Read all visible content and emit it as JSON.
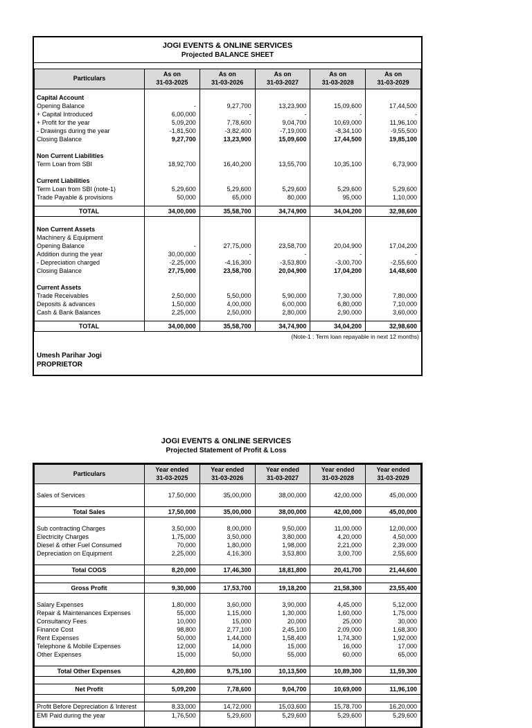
{
  "colors": {
    "header_bg": "#d9d9d9",
    "border": "#000000"
  },
  "balance_sheet": {
    "title_line1": "JOGI EVENTS & ONLINE SERVICES",
    "title_line2": "Projected BALANCE SHEET",
    "particulars_header": "Particulars",
    "columns": [
      {
        "line1": "As on",
        "line2": "31-03-2025"
      },
      {
        "line1": "As on",
        "line2": "31-03-2026"
      },
      {
        "line1": "As on",
        "line2": "31-03-2027"
      },
      {
        "line1": "As on",
        "line2": "31-03-2028"
      },
      {
        "line1": "As on",
        "line2": "31-03-2029"
      }
    ],
    "rows": [
      {
        "type": "spacer",
        "label": "",
        "values": [
          "",
          "",
          "",
          "",
          ""
        ]
      },
      {
        "type": "section",
        "label": "Capital Account",
        "values": [
          "",
          "",
          "",
          "",
          ""
        ]
      },
      {
        "type": "normal",
        "label": "Opening Balance",
        "values": [
          "-",
          "9,27,700",
          "13,23,900",
          "15,09,600",
          "17,44,500"
        ]
      },
      {
        "type": "normal",
        "label": "+ Capital Introduced",
        "values": [
          "6,00,000",
          "-",
          "-",
          "-",
          "-"
        ]
      },
      {
        "type": "normal",
        "label": "+ Profit for the year",
        "values": [
          "5,09,200",
          "7,78,600",
          "9,04,700",
          "10,69,000",
          "11,96,100"
        ]
      },
      {
        "type": "normal",
        "label": "- Drawings during the year",
        "values": [
          "-1,81,500",
          "-3,82,400",
          "-7,19,000",
          "-8,34,100",
          "-9,55,500"
        ]
      },
      {
        "type": "boldvals",
        "label": "Closing Balance",
        "values": [
          "9,27,700",
          "13,23,900",
          "15,09,600",
          "17,44,500",
          "19,85,100"
        ]
      },
      {
        "type": "blank",
        "label": "",
        "values": [
          "",
          "",
          "",
          "",
          ""
        ]
      },
      {
        "type": "section",
        "label": "Non Current Liabilities",
        "values": [
          "",
          "",
          "",
          "",
          ""
        ]
      },
      {
        "type": "normal",
        "label": "Term Loan from SBI",
        "values": [
          "18,92,700",
          "16,40,200",
          "13,55,700",
          "10,35,100",
          "6,73,900"
        ]
      },
      {
        "type": "blank",
        "label": "",
        "values": [
          "",
          "",
          "",
          "",
          ""
        ]
      },
      {
        "type": "section",
        "label": "Current Liabilities",
        "values": [
          "",
          "",
          "",
          "",
          ""
        ]
      },
      {
        "type": "normal",
        "label": "Term Loan from SBI (note-1)",
        "values": [
          "5,29,600",
          "5,29,600",
          "5,29,600",
          "5,29,600",
          "5,29,600"
        ]
      },
      {
        "type": "normal",
        "label": "Trade Payable & provisions",
        "values": [
          "50,000",
          "65,000",
          "80,000",
          "95,000",
          "1,10,000"
        ]
      },
      {
        "type": "spacer",
        "label": "",
        "values": [
          "",
          "",
          "",
          "",
          ""
        ]
      },
      {
        "type": "total",
        "label": "TOTAL",
        "values": [
          "34,00,000",
          "35,58,700",
          "34,74,900",
          "34,04,200",
          "32,98,600"
        ]
      },
      {
        "type": "blank",
        "label": "",
        "values": [
          "",
          "",
          "",
          "",
          ""
        ]
      },
      {
        "type": "section",
        "label": "Non Current Assets",
        "values": [
          "",
          "",
          "",
          "",
          ""
        ]
      },
      {
        "type": "normal",
        "label": "Machinery & Equipment",
        "values": [
          "",
          "",
          "",
          "",
          ""
        ]
      },
      {
        "type": "normal",
        "label": "Opening Balance",
        "values": [
          "-",
          "27,75,000",
          "23,58,700",
          "20,04,900",
          "17,04,200"
        ]
      },
      {
        "type": "normal",
        "label": "Addition during the year",
        "values": [
          "30,00,000",
          "-",
          "-",
          "-",
          "-"
        ]
      },
      {
        "type": "normal",
        "label": "- Depreciation charged",
        "values": [
          "-2,25,000",
          "-4,16,300",
          "-3,53,800",
          "-3,00,700",
          "-2,55,600"
        ]
      },
      {
        "type": "boldvals",
        "label": "Closing Balance",
        "values": [
          "27,75,000",
          "23,58,700",
          "20,04,900",
          "17,04,200",
          "14,48,600"
        ]
      },
      {
        "type": "blank",
        "label": "",
        "values": [
          "",
          "",
          "",
          "",
          ""
        ]
      },
      {
        "type": "section",
        "label": "Current Assets",
        "values": [
          "",
          "",
          "",
          "",
          ""
        ]
      },
      {
        "type": "normal",
        "label": "Trade Receivables",
        "values": [
          "2,50,000",
          "5,50,000",
          "5,90,000",
          "7,30,000",
          "7,80,000"
        ]
      },
      {
        "type": "normal",
        "label": "Deposits & advances",
        "values": [
          "1,50,000",
          "4,00,000",
          "6,00,000",
          "6,80,000",
          "7,10,000"
        ]
      },
      {
        "type": "normal",
        "label": "Cash & Bank Balances",
        "values": [
          "2,25,000",
          "2,50,000",
          "2,80,000",
          "2,90,000",
          "3,60,000"
        ]
      },
      {
        "type": "spacer",
        "label": "",
        "values": [
          "",
          "",
          "",
          "",
          ""
        ]
      },
      {
        "type": "total",
        "label": "TOTAL",
        "values": [
          "34,00,000",
          "35,58,700",
          "34,74,900",
          "34,04,200",
          "32,98,600"
        ]
      }
    ],
    "note": "(Note-1 : Term loan repayable in next 12 months)",
    "signatory_name": "Umesh Parihar Jogi",
    "signatory_designation": "PROPRIETOR"
  },
  "profit_loss": {
    "title_line1": "JOGI EVENTS & ONLINE SERVICES",
    "title_line2": "Projected Statement of Profit & Loss",
    "particulars_header": "Particulars",
    "columns": [
      {
        "line1": "Year ended",
        "line2": "31-03-2025"
      },
      {
        "line1": "Year ended",
        "line2": "31-03-2026"
      },
      {
        "line1": "Year ended",
        "line2": "31-03-2027"
      },
      {
        "line1": "Year ended",
        "line2": "31-03-2028"
      },
      {
        "line1": "Year ended",
        "line2": "31-03-2029"
      }
    ],
    "rows": [
      {
        "type": "spacer",
        "label": "",
        "values": [
          "",
          "",
          "",
          "",
          ""
        ]
      },
      {
        "type": "normal",
        "label": "Sales of Services",
        "values": [
          "17,50,000",
          "35,00,000",
          "38,00,000",
          "42,00,000",
          "45,00,000"
        ]
      },
      {
        "type": "spacer",
        "label": "",
        "values": [
          "",
          "",
          "",
          "",
          ""
        ]
      },
      {
        "type": "total",
        "label": "Total Sales",
        "values": [
          "17,50,000",
          "35,00,000",
          "38,00,000",
          "42,00,000",
          "45,00,000"
        ]
      },
      {
        "type": "spacer",
        "label": "",
        "values": [
          "",
          "",
          "",
          "",
          ""
        ]
      },
      {
        "type": "normal",
        "label": "Sub contracting Charges",
        "values": [
          "3,50,000",
          "8,00,000",
          "9,50,000",
          "11,00,000",
          "12,00,000"
        ]
      },
      {
        "type": "normal",
        "label": "Electricity Charges",
        "values": [
          "1,75,000",
          "3,50,000",
          "3,80,000",
          "4,20,000",
          "4,50,000"
        ]
      },
      {
        "type": "normal",
        "label": "Diesel & other Fuel Consumed",
        "values": [
          "70,000",
          "1,80,000",
          "1,98,000",
          "2,21,000",
          "2,39,000"
        ]
      },
      {
        "type": "normal",
        "label": "Depreciation on Equipment",
        "values": [
          "2,25,000",
          "4,16,300",
          "3,53,800",
          "3,00,700",
          "2,55,600"
        ]
      },
      {
        "type": "spacer",
        "label": "",
        "values": [
          "",
          "",
          "",
          "",
          ""
        ]
      },
      {
        "type": "total",
        "label": "Total COGS",
        "values": [
          "8,20,000",
          "17,46,300",
          "18,81,800",
          "20,41,700",
          "21,44,600"
        ]
      },
      {
        "type": "spacer",
        "label": "",
        "values": [
          "",
          "",
          "",
          "",
          ""
        ]
      },
      {
        "type": "total",
        "label": "Gross Profit",
        "values": [
          "9,30,000",
          "17,53,700",
          "19,18,200",
          "21,58,300",
          "23,55,400"
        ]
      },
      {
        "type": "spacer",
        "label": "",
        "values": [
          "",
          "",
          "",
          "",
          ""
        ]
      },
      {
        "type": "normal",
        "label": "Salary Expenses",
        "values": [
          "1,80,000",
          "3,60,000",
          "3,90,000",
          "4,45,000",
          "5,12,000"
        ]
      },
      {
        "type": "normal",
        "label": "Repair & Maintenances Expenses",
        "values": [
          "55,000",
          "1,15,000",
          "1,30,000",
          "1,60,000",
          "1,75,000"
        ]
      },
      {
        "type": "normal",
        "label": "Consultancy Fees",
        "values": [
          "10,000",
          "15,000",
          "20,000",
          "25,000",
          "30,000"
        ]
      },
      {
        "type": "normal",
        "label": "Finance Cost",
        "values": [
          "98,800",
          "2,77,100",
          "2,45,100",
          "2,09,000",
          "1,68,300"
        ]
      },
      {
        "type": "normal",
        "label": "Rent Expenses",
        "values": [
          "50,000",
          "1,44,000",
          "1,58,400",
          "1,74,300",
          "1,92,000"
        ]
      },
      {
        "type": "normal",
        "label": "Telephone & Mobile Expenses",
        "values": [
          "12,000",
          "14,000",
          "15,000",
          "16,000",
          "17,000"
        ]
      },
      {
        "type": "normal",
        "label": "Other Expenses",
        "values": [
          "15,000",
          "50,000",
          "55,000",
          "60,000",
          "65,000"
        ]
      },
      {
        "type": "spacer",
        "label": "",
        "values": [
          "",
          "",
          "",
          "",
          ""
        ]
      },
      {
        "type": "total",
        "label": "Total Other Expenses",
        "values": [
          "4,20,800",
          "9,75,100",
          "10,13,500",
          "10,89,300",
          "11,59,300"
        ]
      },
      {
        "type": "spacer",
        "label": "",
        "values": [
          "",
          "",
          "",
          "",
          ""
        ]
      },
      {
        "type": "total",
        "label": "Net Profit",
        "values": [
          "5,09,200",
          "7,78,600",
          "9,04,700",
          "10,69,000",
          "11,96,100"
        ]
      },
      {
        "type": "spacer",
        "label": "",
        "values": [
          "",
          "",
          "",
          "",
          ""
        ]
      },
      {
        "type": "normal",
        "line_top": true,
        "label": "Profit Before Depreciation & Interest",
        "values": [
          "8,33,000",
          "14,72,000",
          "15,03,600",
          "15,78,700",
          "16,20,000"
        ]
      },
      {
        "type": "normal",
        "line_top": true,
        "label": "EMI Paid during the year",
        "values": [
          "1,76,500",
          "5,29,600",
          "5,29,600",
          "5,29,600",
          "5,29,600"
        ]
      },
      {
        "type": "spacer",
        "label": "",
        "values": [
          "",
          "",
          "",
          "",
          ""
        ]
      }
    ]
  }
}
